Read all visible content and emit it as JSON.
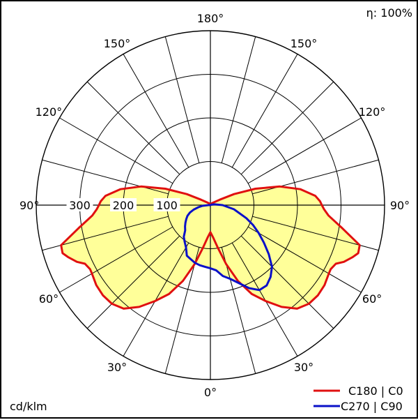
{
  "chart_data": {
    "type": "polar",
    "efficiency_label": "η: 100%",
    "unit_label": "cd/klm",
    "radial_max": 400,
    "radial_ticks": [
      100,
      200,
      300
    ],
    "radial_tick_labels": [
      "100",
      "200",
      "300"
    ],
    "angle_labels": {
      "a0": "0°",
      "a30": "30°",
      "a60": "60°",
      "a90": "90°",
      "a120": "120°",
      "a150": "150°",
      "a180": "180°"
    },
    "fill_color": "#ffff99",
    "series": [
      {
        "name": "C180 | C0",
        "color": "#e01010",
        "angles": [
          0,
          5,
          10,
          15,
          20,
          25,
          30,
          35,
          40,
          45,
          50,
          55,
          60,
          62,
          65,
          67,
          70,
          72,
          75,
          80,
          85,
          88,
          90,
          92,
          95,
          100,
          105,
          110,
          115,
          120,
          140,
          160,
          180
        ],
        "values": [
          62,
          75,
          100,
          140,
          185,
          225,
          254,
          285,
          310,
          320,
          322,
          320,
          314,
          313,
          318,
          333,
          348,
          357,
          355,
          308,
          272,
          261,
          256,
          252,
          242,
          210,
          165,
          110,
          60,
          25,
          6,
          2,
          0
        ]
      },
      {
        "name": "C270 | C90",
        "color": "#0a10c8",
        "angles": [
          -95,
          -90,
          -85,
          -80,
          -75,
          -70,
          -65,
          -60,
          -55,
          -50,
          -45,
          -40,
          -35,
          -30,
          -25,
          -20,
          -15,
          -10,
          -5,
          0,
          5,
          10,
          15,
          20,
          25,
          30,
          35,
          40,
          45,
          50,
          55,
          60,
          65,
          70,
          80,
          90,
          100,
          120,
          180
        ],
        "values": [
          0,
          5,
          18,
          28,
          40,
          50,
          58,
          64,
          70,
          76,
          82,
          95,
          103,
          112,
          128,
          132,
          137,
          140,
          142,
          145,
          150,
          165,
          175,
          190,
          210,
          225,
          225,
          215,
          200,
          175,
          150,
          128,
          108,
          88,
          55,
          28,
          10,
          2,
          0
        ]
      }
    ]
  }
}
